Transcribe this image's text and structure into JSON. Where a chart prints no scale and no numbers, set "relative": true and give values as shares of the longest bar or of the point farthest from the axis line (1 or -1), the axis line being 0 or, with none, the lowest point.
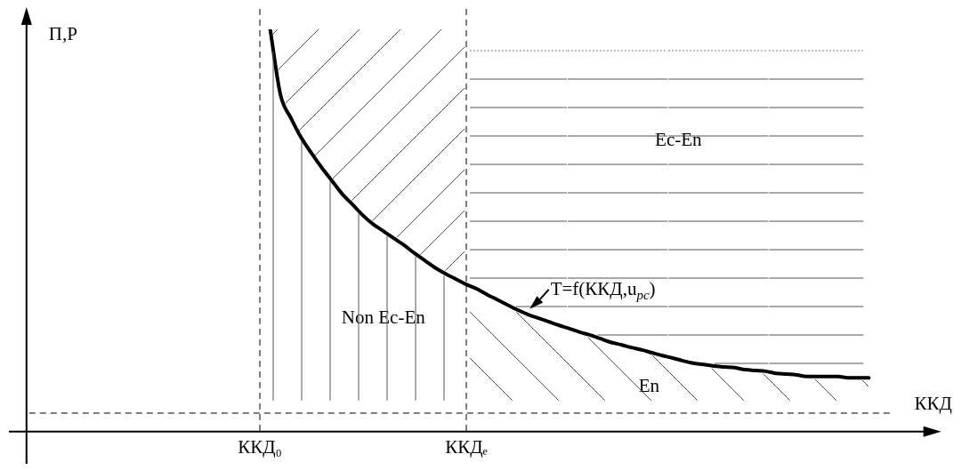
{
  "chart_data": {
    "type": "line",
    "relative": true,
    "xlabel": "ККД",
    "ylabel": "П,Р",
    "categories": [
      null,
      null,
      null,
      null,
      null,
      null,
      null,
      null,
      null,
      null,
      null,
      null,
      null,
      null,
      null,
      null,
      null,
      null,
      null,
      null,
      null,
      null,
      "ККД₀",
      null,
      null,
      null,
      null,
      null,
      null,
      null,
      null,
      null,
      null,
      null,
      null,
      null,
      null,
      null,
      null,
      null,
      null,
      null,
      "ККДₑ",
      null,
      null,
      null,
      null,
      null,
      null,
      null,
      null,
      null,
      null,
      null,
      null,
      null,
      null,
      null,
      null,
      null,
      null,
      null,
      null,
      null,
      null,
      null,
      null,
      null,
      null,
      null,
      null,
      null,
      null,
      null,
      null,
      null,
      null,
      null,
      null,
      null,
      null,
      null,
      null,
      null,
      null,
      null,
      null,
      null,
      null
    ],
    "series": [
      {
        "color": "#000000",
        "values": [
          null,
          null,
          null,
          null,
          null,
          null,
          null,
          null,
          null,
          null,
          null,
          null,
          null,
          null,
          null,
          null,
          null,
          null,
          null,
          null,
          null,
          null,
          null,
          1,
          0.837,
          0.78,
          0.731,
          0.692,
          0.656,
          0.623,
          0.59,
          0.564,
          0.537,
          0.515,
          0.498,
          0.48,
          0.463,
          0.443,
          0.425,
          0.407,
          0.392,
          0.379,
          0.366,
          0.355,
          0.341,
          0.328,
          0.315,
          0.302,
          0.291,
          0.282,
          0.273,
          0.264,
          0.256,
          0.247,
          0.24,
          0.231,
          0.222,
          0.216,
          0.209,
          0.203,
          0.196,
          0.189,
          0.183,
          0.176,
          0.17,
          0.167,
          0.163,
          0.161,
          0.159,
          0.154,
          0.152,
          0.15,
          0.145,
          0.143,
          0.141,
          0.137,
          0.137,
          0.137,
          0.137,
          0.134,
          0.134,
          0.134,
          null,
          null,
          null,
          null,
          null,
          null,
          null
        ]
      }
    ],
    "ref_lines": [
      {
        "axis": "y",
        "value": 0.046,
        "line_style": "dashed"
      }
    ],
    "annotations": [
      "Ec-En",
      "Non Ec-En",
      "En",
      "T=f(ККД,u$_{pc}$)"
    ],
    "grid": "x",
    "legend": false,
    "marker": "none",
    "line_style": "solid"
  }
}
